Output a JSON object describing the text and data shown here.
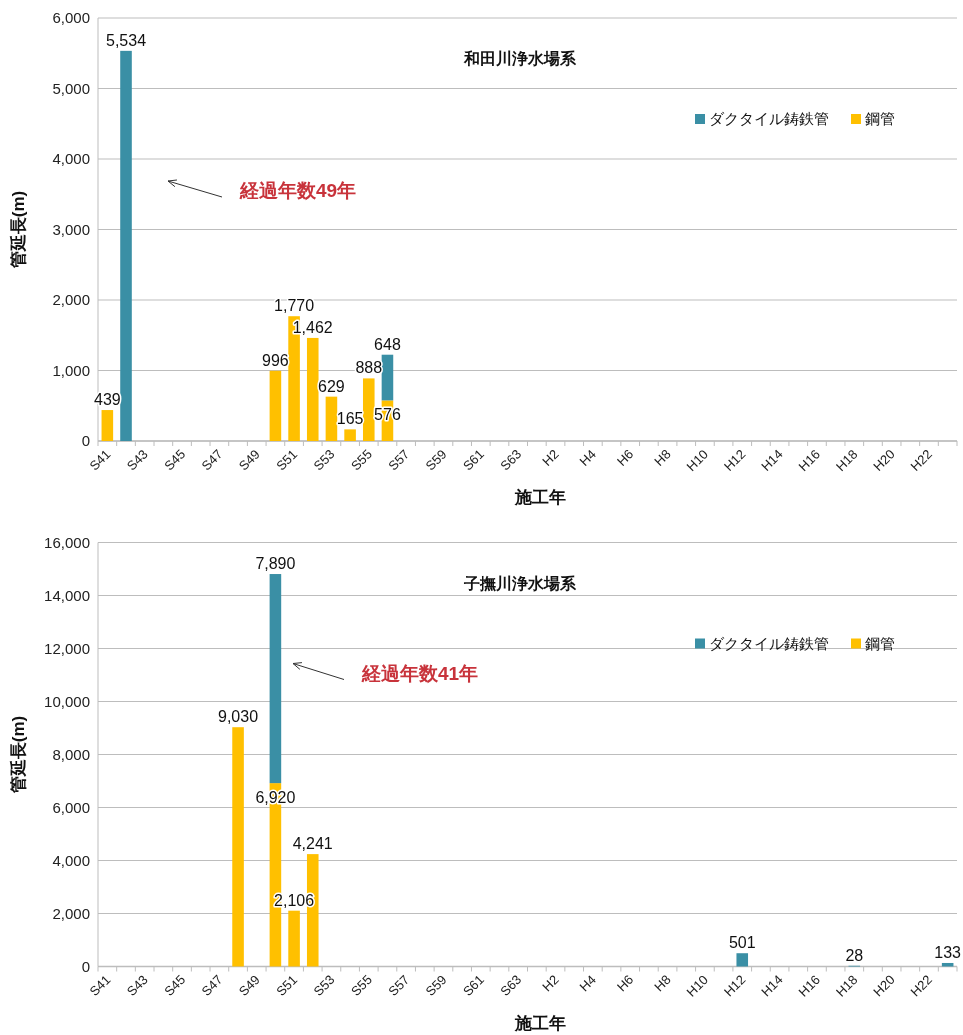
{
  "chart_data": [
    {
      "type": "bar",
      "stacked": true,
      "title": "和田川浄水場系",
      "xlabel": "施工年",
      "ylabel": "管延長(m)",
      "categories": [
        "S41",
        null,
        "S43",
        null,
        "S45",
        null,
        "S47",
        null,
        "S49",
        null,
        "S51",
        null,
        "S53",
        null,
        "S55",
        null,
        "S57",
        null,
        "S59",
        null,
        "S61",
        null,
        "S63",
        null,
        "H2",
        null,
        "H4",
        null,
        "H6",
        null,
        "H8",
        null,
        "H10",
        null,
        "H12",
        null,
        "H14",
        null,
        "H16",
        null,
        "H18",
        null,
        "H20",
        null,
        "H22",
        null
      ],
      "series": [
        {
          "name": "鋼管",
          "color": "#ffc000",
          "values": [
            439,
            null,
            null,
            null,
            null,
            null,
            null,
            null,
            null,
            996,
            1770,
            1462,
            629,
            165,
            888,
            576,
            null,
            null,
            null,
            null,
            null,
            null,
            null,
            null,
            null,
            null,
            null,
            null,
            null,
            null,
            null,
            null,
            null,
            null,
            null,
            null,
            null,
            null,
            null,
            null,
            null,
            null,
            null,
            null,
            null,
            null
          ],
          "value_labels": [
            "439",
            null,
            null,
            null,
            null,
            null,
            null,
            null,
            null,
            "996",
            "1,770",
            "1,462",
            "629",
            "165",
            "888",
            "576",
            null,
            null,
            null,
            null,
            null,
            null,
            null,
            null,
            null,
            null,
            null,
            null,
            null,
            null,
            null,
            null,
            null,
            null,
            null,
            null,
            null,
            null,
            null,
            null,
            null,
            null,
            null,
            null,
            null,
            null
          ]
        },
        {
          "name": "ダクタイル鋳鉄管",
          "color": "#3a8fa5",
          "values": [
            null,
            5534,
            null,
            null,
            null,
            null,
            null,
            null,
            null,
            null,
            null,
            null,
            null,
            null,
            null,
            648,
            null,
            null,
            null,
            null,
            null,
            null,
            null,
            null,
            null,
            null,
            null,
            null,
            null,
            null,
            null,
            null,
            null,
            null,
            null,
            null,
            null,
            null,
            null,
            null,
            null,
            null,
            null,
            null,
            null,
            null
          ],
          "value_labels": [
            null,
            "5,534",
            null,
            null,
            null,
            null,
            null,
            null,
            null,
            null,
            null,
            null,
            null,
            null,
            null,
            "648",
            null,
            null,
            null,
            null,
            null,
            null,
            null,
            null,
            null,
            null,
            null,
            null,
            null,
            null,
            null,
            null,
            null,
            null,
            null,
            null,
            null,
            null,
            null,
            null,
            null,
            null,
            null,
            null,
            null,
            null
          ]
        }
      ],
      "ylim": [
        0,
        6000
      ],
      "yticks": [
        {
          "value": 0,
          "label": "0"
        },
        {
          "value": 1000,
          "label": "1,000"
        },
        {
          "value": 2000,
          "label": "2,000"
        },
        {
          "value": 3000,
          "label": "3,000"
        },
        {
          "value": 4000,
          "label": "4,000"
        },
        {
          "value": 5000,
          "label": "5,000"
        },
        {
          "value": 6000,
          "label": "6,000"
        }
      ],
      "grid": "y",
      "legend": "top right",
      "annotations": [
        "経過年数49年"
      ]
    },
    {
      "type": "bar",
      "stacked": true,
      "title": "子撫川浄水場系",
      "xlabel": "施工年",
      "ylabel": "管延長(m)",
      "categories": [
        "S41",
        null,
        "S43",
        null,
        "S45",
        null,
        "S47",
        null,
        "S49",
        null,
        "S51",
        null,
        "S53",
        null,
        "S55",
        null,
        "S57",
        null,
        "S59",
        null,
        "S61",
        null,
        "S63",
        null,
        "H2",
        null,
        "H4",
        null,
        "H6",
        null,
        "H8",
        null,
        "H10",
        null,
        "H12",
        null,
        "H14",
        null,
        "H16",
        null,
        "H18",
        null,
        "H20",
        null,
        "H22",
        null
      ],
      "series": [
        {
          "name": "鋼管",
          "color": "#ffc000",
          "values": [
            null,
            null,
            null,
            null,
            null,
            null,
            null,
            9030,
            null,
            6920,
            2106,
            4241,
            null,
            null,
            null,
            null,
            null,
            null,
            null,
            null,
            null,
            null,
            null,
            null,
            null,
            null,
            null,
            null,
            null,
            null,
            null,
            null,
            null,
            null,
            null,
            null,
            null,
            null,
            null,
            null,
            null,
            null,
            null,
            null,
            null,
            null
          ],
          "value_labels": [
            null,
            null,
            null,
            null,
            null,
            null,
            null,
            "9,030",
            null,
            "6,920",
            "2,106",
            "4,241",
            null,
            null,
            null,
            null,
            null,
            null,
            null,
            null,
            null,
            null,
            null,
            null,
            null,
            null,
            null,
            null,
            null,
            null,
            null,
            null,
            null,
            null,
            null,
            null,
            null,
            null,
            null,
            null,
            null,
            null,
            null,
            null,
            null,
            null
          ]
        },
        {
          "name": "ダクタイル鋳鉄管",
          "color": "#3a8fa5",
          "values": [
            null,
            null,
            null,
            null,
            null,
            null,
            null,
            null,
            null,
            7890,
            null,
            null,
            null,
            null,
            null,
            null,
            null,
            null,
            null,
            null,
            null,
            null,
            null,
            null,
            null,
            null,
            null,
            null,
            null,
            null,
            null,
            null,
            null,
            null,
            501,
            null,
            null,
            null,
            null,
            null,
            28,
            null,
            null,
            null,
            null,
            133
          ],
          "value_labels": [
            null,
            null,
            null,
            null,
            null,
            null,
            null,
            null,
            null,
            "7,890",
            null,
            null,
            null,
            null,
            null,
            null,
            null,
            null,
            null,
            null,
            null,
            null,
            null,
            null,
            null,
            null,
            null,
            null,
            null,
            null,
            null,
            null,
            null,
            null,
            "501",
            null,
            null,
            null,
            null,
            null,
            "28",
            null,
            null,
            null,
            null,
            "133"
          ]
        }
      ],
      "ylim": [
        0,
        16000
      ],
      "yticks": [
        {
          "value": 0,
          "label": "0"
        },
        {
          "value": 2000,
          "label": "2,000"
        },
        {
          "value": 4000,
          "label": "4,000"
        },
        {
          "value": 6000,
          "label": "6,000"
        },
        {
          "value": 8000,
          "label": "8,000"
        },
        {
          "value": 10000,
          "label": "10,000"
        },
        {
          "value": 12000,
          "label": "12,000"
        },
        {
          "value": 14000,
          "label": "14,000"
        },
        {
          "value": 16000,
          "label": "16,000"
        }
      ],
      "grid": "y",
      "legend": "top right",
      "annotations": [
        "経過年数41年"
      ]
    }
  ]
}
